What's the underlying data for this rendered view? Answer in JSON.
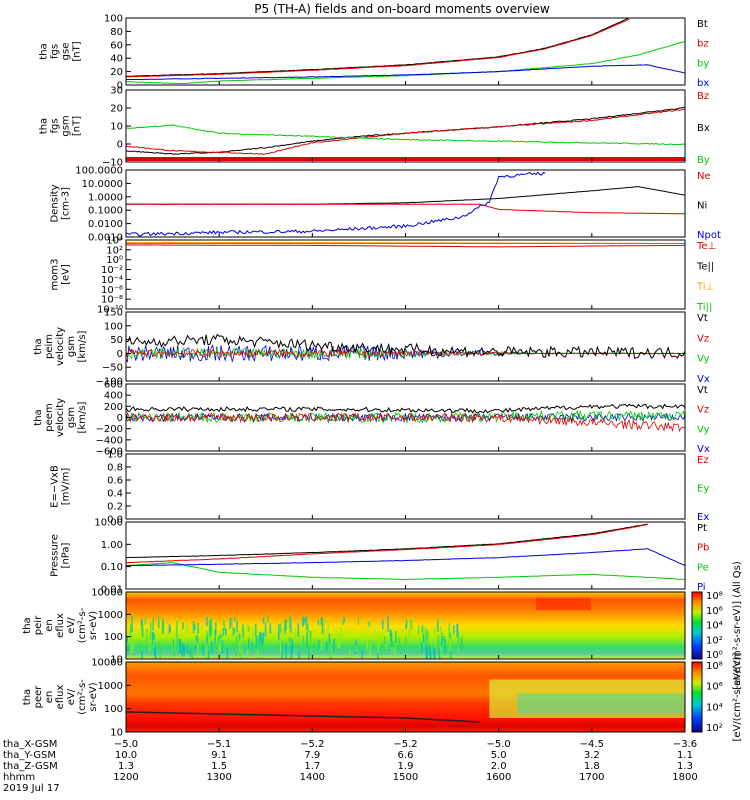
{
  "title": "P5 (TH-A) fields and on-board moments overview",
  "colors": {
    "black": "#000000",
    "red": "#e00000",
    "green": "#00cc00",
    "blue": "#0000dd",
    "orange": "#ff9900"
  },
  "chart_data": [
    {
      "type": "line",
      "id": "p1",
      "ylabel": [
        "tha",
        "fgs",
        "gse",
        "[nT]"
      ],
      "ylim": [
        0,
        100
      ],
      "yscale": "linear",
      "yticks": [
        "100",
        "80",
        "60",
        "40",
        "20",
        "0"
      ],
      "legend": [
        {
          "name": "Bt",
          "color": "black"
        },
        {
          "name": "bz",
          "color": "red"
        },
        {
          "name": "by",
          "color": "green"
        },
        {
          "name": "bx",
          "color": "blue"
        }
      ],
      "series": [
        {
          "name": "Bt",
          "x": [
            1200,
            1300,
            1400,
            1500,
            1600,
            1650,
            1700,
            1740
          ],
          "values": [
            13,
            17,
            23,
            30,
            42,
            55,
            75,
            100
          ]
        },
        {
          "name": "bz",
          "x": [
            1200,
            1300,
            1400,
            1500,
            1600,
            1650,
            1700,
            1740
          ],
          "values": [
            12,
            16,
            22,
            29,
            41,
            54,
            74,
            98
          ]
        },
        {
          "name": "by",
          "x": [
            1200,
            1260,
            1300,
            1400,
            1500,
            1600,
            1700,
            1750,
            1800
          ],
          "values": [
            5,
            2,
            6,
            10,
            14,
            20,
            32,
            45,
            65
          ]
        },
        {
          "name": "bx",
          "x": [
            1200,
            1300,
            1400,
            1500,
            1600,
            1700,
            1760,
            1800
          ],
          "values": [
            8,
            10,
            12,
            15,
            20,
            28,
            30,
            18
          ]
        }
      ]
    },
    {
      "type": "line",
      "id": "p2",
      "ylabel": [
        "tha",
        "fgs",
        "gsm",
        "[nT]"
      ],
      "ylim": [
        -15,
        30
      ],
      "yscale": "linear",
      "yticks": [
        "30",
        "20",
        "10",
        "0",
        "−10"
      ],
      "legend": [
        {
          "name": "Bz",
          "color": "red"
        },
        {
          "name": "Bx",
          "color": "black"
        },
        {
          "name": "By",
          "color": "green"
        }
      ],
      "series": [
        {
          "name": "Bx",
          "x": [
            1200,
            1250,
            1300,
            1350,
            1400,
            1450,
            1500,
            1550,
            1600,
            1700,
            1800
          ],
          "values": [
            -8,
            -10,
            -9,
            -6,
            -2,
            1,
            3,
            5,
            7,
            12,
            19
          ]
        },
        {
          "name": "Bz",
          "x": [
            1200,
            1250,
            1300,
            1350,
            1400,
            1450,
            1500,
            1550,
            1600,
            1700,
            1800
          ],
          "values": [
            -5,
            -8,
            -9,
            -10,
            -3,
            0,
            3,
            5,
            7,
            11,
            18
          ]
        },
        {
          "name": "By",
          "x": [
            1200,
            1250,
            1300,
            1350,
            1400,
            1450,
            1500,
            1600,
            1700,
            1800
          ],
          "values": [
            6,
            8,
            3,
            2,
            1,
            0,
            -1,
            -2,
            -3,
            -4
          ]
        }
      ]
    },
    {
      "type": "line",
      "id": "p3",
      "ylabel": [
        "Density",
        "[cm-3]"
      ],
      "ylim": [
        0.0003,
        400
      ],
      "yscale": "log",
      "yticks": [
        "100.0000",
        "10.0000",
        "1.0000",
        "0.1000",
        "0.0100",
        "0.0010"
      ],
      "legend": [
        {
          "name": "Ne",
          "color": "red"
        },
        {
          "name": "Ni",
          "color": "black"
        },
        {
          "name": "Npot",
          "color": "blue"
        }
      ],
      "series": [
        {
          "name": "Ni",
          "x": [
            1200,
            1300,
            1400,
            1500,
            1600,
            1700,
            1750,
            1800
          ],
          "values": [
            0.3,
            0.3,
            0.3,
            0.4,
            1,
            5,
            12,
            2
          ]
        },
        {
          "name": "Ne",
          "x": [
            1200,
            1300,
            1400,
            1500,
            1580,
            1600,
            1700,
            1800
          ],
          "values": [
            0.3,
            0.3,
            0.3,
            0.3,
            0.3,
            0.1,
            0.05,
            0.04
          ]
        },
        {
          "name": "Npot",
          "x": [
            1200,
            1300,
            1400,
            1500,
            1560,
            1590,
            1600,
            1650
          ],
          "values": [
            0.0005,
            0.0008,
            0.001,
            0.003,
            0.02,
            0.5,
            100,
            200
          ]
        }
      ]
    },
    {
      "type": "line",
      "id": "p4",
      "ylabel": [
        "mom3",
        "[eV]"
      ],
      "ylim": [
        1e-10,
        10000
      ],
      "yscale": "log",
      "yticks": [
        "10⁴",
        "10²",
        "10⁰",
        "10⁻²",
        "10⁻⁴",
        "10⁻⁶",
        "10⁻⁸",
        "10⁻¹⁰"
      ],
      "legend": [
        {
          "name": "Te⊥",
          "color": "red"
        },
        {
          "name": "Te||",
          "color": "black"
        },
        {
          "name": "Ti⊥",
          "color": "orange"
        },
        {
          "name": "Ti||",
          "color": "green"
        }
      ],
      "series": [
        {
          "name": "Ti",
          "x": [
            1200,
            1400,
            1600,
            1800
          ],
          "values": [
            3000,
            3000,
            2500,
            2000
          ]
        },
        {
          "name": "Te",
          "x": [
            1200,
            1400,
            1600,
            1700,
            1800
          ],
          "values": [
            1000,
            800,
            400,
            600,
            800
          ]
        }
      ]
    },
    {
      "type": "line",
      "id": "p5",
      "ylabel": [
        "tha",
        "peim",
        "velocity",
        "gsm",
        "[km/s]"
      ],
      "ylim": [
        -100,
        150
      ],
      "yscale": "linear",
      "yticks": [
        "150",
        "100",
        "50",
        "0",
        "−50",
        "−100"
      ],
      "legend": [
        {
          "name": "Vt",
          "color": "black"
        },
        {
          "name": "Vz",
          "color": "red"
        },
        {
          "name": "Vy",
          "color": "green"
        },
        {
          "name": "Vx",
          "color": "blue"
        }
      ],
      "series": [
        {
          "name": "Vt",
          "x": [
            1200,
            1300,
            1400,
            1500,
            1600,
            1800
          ],
          "values": [
            40,
            50,
            30,
            15,
            5,
            2
          ]
        }
      ]
    },
    {
      "type": "line",
      "id": "p6",
      "ylabel": [
        "tha",
        "peem",
        "velocity",
        "gsm",
        "[km/s]"
      ],
      "ylim": [
        -600,
        600
      ],
      "yscale": "linear",
      "yticks": [
        "600",
        "400",
        "200",
        "0",
        "−200",
        "−400",
        "−600"
      ],
      "legend": [
        {
          "name": "Vt",
          "color": "black"
        },
        {
          "name": "Vz",
          "color": "red"
        },
        {
          "name": "Vy",
          "color": "green"
        },
        {
          "name": "Vx",
          "color": "blue"
        }
      ],
      "series": [
        {
          "name": "Vt",
          "x": [
            1200,
            1400,
            1600,
            1700,
            1800
          ],
          "values": [
            150,
            150,
            120,
            200,
            200
          ]
        }
      ]
    },
    {
      "type": "line",
      "id": "p7",
      "ylabel": [
        "E=−VxB",
        "[mV/m]"
      ],
      "ylim": [
        0,
        1
      ],
      "yscale": "linear",
      "yticks": [
        "1.0",
        "0.8",
        "0.6",
        "0.4",
        "0.2",
        "0.0"
      ],
      "legend": [
        {
          "name": "Ez",
          "color": "red"
        },
        {
          "name": "Ey",
          "color": "green"
        },
        {
          "name": "Ex",
          "color": "blue"
        }
      ],
      "series": []
    },
    {
      "type": "line",
      "id": "p8",
      "ylabel": [
        "Pressure",
        "[nPa]"
      ],
      "ylim": [
        0.004,
        40
      ],
      "yscale": "log",
      "yticks": [
        "10.00",
        "1.00",
        "0.10",
        "0.01"
      ],
      "legend": [
        {
          "name": "Pt",
          "color": "black"
        },
        {
          "name": "Pb",
          "color": "red"
        },
        {
          "name": "Pe",
          "color": "green"
        },
        {
          "name": "Pi",
          "color": "blue"
        }
      ],
      "series": [
        {
          "name": "Pt",
          "x": [
            1200,
            1300,
            1400,
            1500,
            1600,
            1700,
            1760
          ],
          "values": [
            0.3,
            0.4,
            0.6,
            1,
            2,
            8,
            30
          ]
        },
        {
          "name": "Pb",
          "x": [
            1200,
            1300,
            1400,
            1500,
            1600,
            1700,
            1760
          ],
          "values": [
            0.15,
            0.25,
            0.5,
            0.9,
            1.8,
            7,
            28
          ]
        },
        {
          "name": "Pe",
          "x": [
            1200,
            1250,
            1300,
            1400,
            1500,
            1600,
            1700,
            1800
          ],
          "values": [
            0.1,
            0.15,
            0.04,
            0.02,
            0.015,
            0.02,
            0.03,
            0.015
          ]
        },
        {
          "name": "Pi",
          "x": [
            1200,
            1300,
            1400,
            1500,
            1600,
            1700,
            1760,
            1800
          ],
          "values": [
            0.1,
            0.12,
            0.15,
            0.2,
            0.3,
            0.6,
            1,
            0.1
          ]
        }
      ]
    },
    {
      "type": "heatmap",
      "id": "p9",
      "ylabel": [
        "tha",
        "peir",
        "en",
        "eflux",
        "eV/",
        "(cm²-s-",
        "sr-eV)"
      ],
      "ylim": [
        5,
        25000
      ],
      "yscale": "log",
      "yticks": [
        "10000",
        "1000",
        "100",
        "10"
      ],
      "colorbar": {
        "label": "[eV/(cm²-s-sr-eV)] (All Qs)",
        "ticks": [
          "10⁸",
          "10⁶",
          "10⁴",
          "10²",
          "10⁰"
        ]
      }
    },
    {
      "type": "heatmap",
      "id": "p10",
      "ylabel": [
        "tha",
        "peer",
        "en",
        "eflux",
        "eV/",
        "(cm²-s-",
        "sr-eV)"
      ],
      "ylim": [
        5,
        25000
      ],
      "yscale": "log",
      "yticks": [
        "10000",
        "1000",
        "100",
        "10"
      ],
      "colorbar": {
        "label": "[eV/(cm²-s-sr-eV)]",
        "ticks": [
          "10⁸",
          "10⁶",
          "10⁴",
          "10²"
        ]
      }
    }
  ],
  "xaxis": {
    "xlim": [
      1200,
      1800
    ],
    "rows": [
      {
        "label": "tha_X-GSM",
        "values": [
          "−5.0",
          "−5.1",
          "−5.2",
          "−5.2",
          "−5.0",
          "−4.5",
          "−3.6"
        ]
      },
      {
        "label": "tha_Y-GSM",
        "values": [
          "10.0",
          "9.1",
          "7.9",
          "6.6",
          "5.0",
          "3.2",
          "1.1"
        ]
      },
      {
        "label": "tha_Z-GSM",
        "values": [
          "1.3",
          "1.5",
          "1.7",
          "1.9",
          "2.0",
          "1.8",
          "1.3"
        ]
      },
      {
        "label": "hhmm",
        "values": [
          "1200",
          "1300",
          "1400",
          "1500",
          "1600",
          "1700",
          "1800"
        ]
      }
    ],
    "date": "2019 Jul 17"
  }
}
